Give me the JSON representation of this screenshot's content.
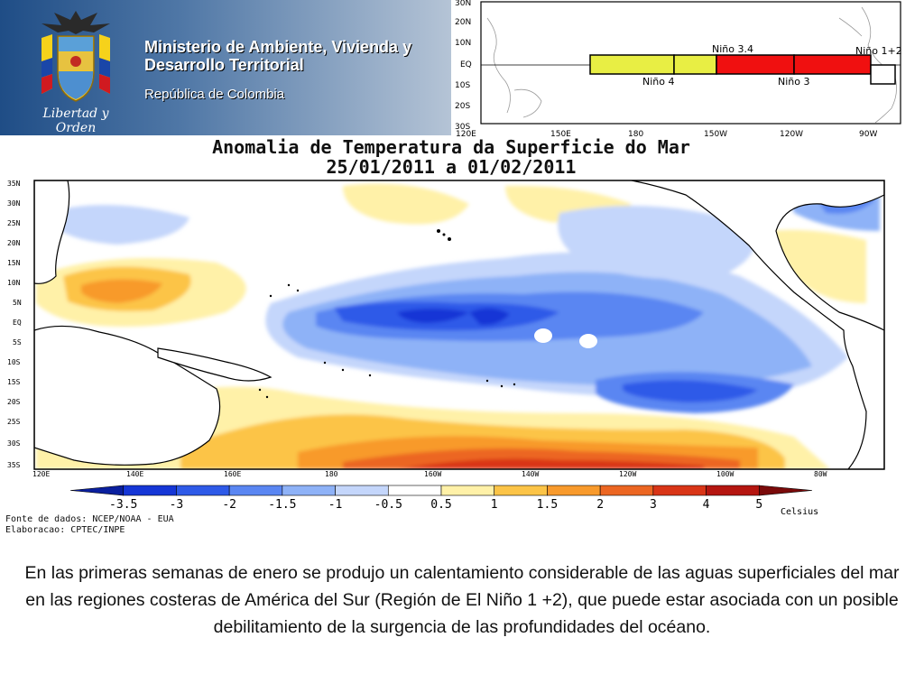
{
  "header": {
    "ministry_line1": "Ministerio de Ambiente, Vivienda y",
    "ministry_line2": "Desarrollo Territorial",
    "republic": "República de Colombia",
    "motto": "Libertad y Orden"
  },
  "inset": {
    "lat_labels": [
      "30N",
      "20N",
      "10N",
      "EQ",
      "10S",
      "20S",
      "30S"
    ],
    "lon_labels": [
      "120E",
      "150E",
      "180",
      "150W",
      "120W",
      "90W"
    ],
    "regions": [
      {
        "label": "Niño 4",
        "color": "#e8ee44"
      },
      {
        "label": "Niño 3.4",
        "color": "#e8ee44"
      },
      {
        "label": "Niño 3",
        "color": "#f01010"
      },
      {
        "label": "Niño 1+2",
        "color": "#ffffff"
      }
    ]
  },
  "map": {
    "title_line1": "Anomalia de Temperatura da Superficie do Mar",
    "title_line2": "25/01/2011 a 01/02/2011",
    "lat_labels": [
      "35N",
      "30N",
      "25N",
      "20N",
      "15N",
      "10N",
      "5N",
      "EQ",
      "5S",
      "10S",
      "15S",
      "20S",
      "25S",
      "30S",
      "35S"
    ],
    "lon_labels": [
      "120E",
      "140E",
      "160E",
      "180",
      "160W",
      "140W",
      "120W",
      "100W",
      "80W"
    ]
  },
  "colorbar": {
    "labels": [
      "-3.5",
      "-3",
      "-2",
      "-1.5",
      "-1",
      "-0.5",
      "0.5",
      "1",
      "1.5",
      "2",
      "3",
      "4",
      "5"
    ],
    "unit": "Celsius",
    "colors": [
      "#0a1f9e",
      "#1536d6",
      "#2e5ae8",
      "#5a86f2",
      "#8eb2f7",
      "#c4d6fb",
      "#ffffff",
      "#fff1a8",
      "#fcc447",
      "#f89a2c",
      "#ec6622",
      "#d93517",
      "#b51610",
      "#7a0a0a"
    ]
  },
  "credits": {
    "source": "Fonte de dados: NCEP/NOAA - EUA",
    "elaboration": "Elaboracao: CPTEC/INPE"
  },
  "caption": "En las primeras semanas de enero se produjo un calentamiento considerable de las aguas superficiales del mar en las regiones costeras de América del Sur (Región de El Niño 1 +2), que puede estar asociada con un posible debilitamiento de la surgencia de las profundidades del océano."
}
